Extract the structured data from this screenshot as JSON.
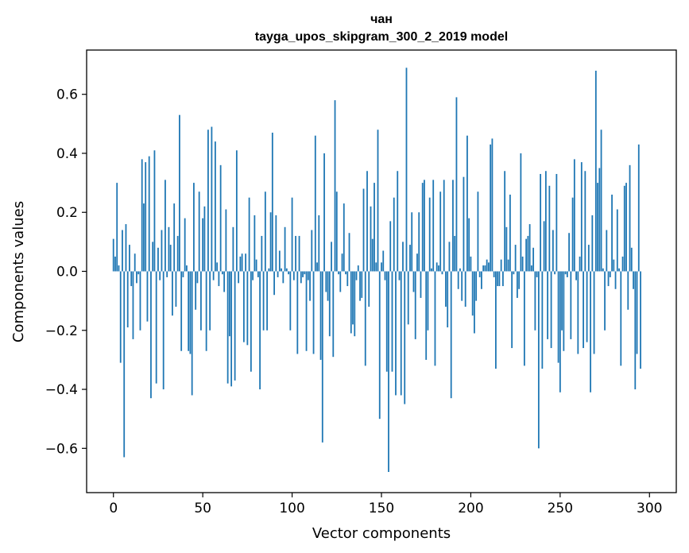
{
  "chart_data": {
    "type": "bar",
    "title": "чан",
    "subtitle": "tayga_upos_skipgram_300_2_2019 model",
    "xlabel": "Vector components",
    "ylabel": "Components values",
    "xlim": [
      -15,
      315
    ],
    "ylim": [
      -0.75,
      0.75
    ],
    "xticks": [
      0,
      50,
      100,
      150,
      200,
      250,
      300
    ],
    "yticks": [
      -0.6,
      -0.4,
      -0.2,
      0.0,
      0.2,
      0.4,
      0.6
    ],
    "ytick_labels": [
      "−0.6",
      "−0.4",
      "−0.2",
      "0.0",
      "0.2",
      "0.4",
      "0.6"
    ],
    "bar_color": "#1f77b4",
    "values": [
      0.11,
      0.05,
      0.3,
      0.02,
      -0.31,
      0.14,
      -0.63,
      0.16,
      -0.19,
      0.09,
      -0.05,
      -0.23,
      0.06,
      -0.04,
      -0.01,
      -0.2,
      0.38,
      0.23,
      0.37,
      -0.17,
      0.39,
      -0.43,
      0.1,
      0.41,
      -0.38,
      0.08,
      -0.03,
      0.14,
      -0.4,
      0.31,
      -0.02,
      0.15,
      0.09,
      -0.15,
      0.23,
      -0.12,
      0.12,
      0.53,
      -0.27,
      -0.02,
      0.18,
      0.02,
      -0.27,
      -0.28,
      -0.42,
      0.3,
      -0.13,
      -0.04,
      0.27,
      -0.2,
      0.18,
      0.22,
      -0.27,
      0.48,
      -0.2,
      0.49,
      -0.03,
      0.44,
      0.03,
      -0.05,
      0.36,
      -0.01,
      -0.07,
      0.21,
      -0.38,
      -0.22,
      -0.39,
      0.15,
      -0.37,
      0.41,
      -0.04,
      0.05,
      0.06,
      -0.24,
      0.06,
      -0.25,
      0.25,
      -0.34,
      -0.03,
      0.19,
      0.04,
      -0.02,
      -0.4,
      0.12,
      -0.2,
      0.27,
      -0.2,
      0.01,
      0.2,
      0.47,
      -0.08,
      0.19,
      -0.02,
      0.07,
      0.01,
      -0.04,
      0.15,
      0.01,
      -0.01,
      -0.2,
      0.25,
      -0.03,
      0.12,
      -0.28,
      0.12,
      -0.04,
      -0.02,
      -0.01,
      -0.27,
      -0.03,
      -0.1,
      0.14,
      -0.28,
      0.46,
      0.03,
      0.19,
      -0.3,
      -0.58,
      0.4,
      -0.07,
      -0.1,
      -0.22,
      0.1,
      -0.29,
      0.58,
      0.27,
      -0.01,
      -0.07,
      0.06,
      0.23,
      -0.01,
      -0.05,
      0.13,
      -0.21,
      -0.18,
      -0.22,
      -0.03,
      0.02,
      -0.1,
      -0.09,
      0.28,
      -0.32,
      0.34,
      -0.12,
      0.22,
      0.11,
      0.3,
      0.03,
      0.48,
      -0.5,
      0.03,
      0.07,
      -0.03,
      -0.34,
      -0.68,
      0.17,
      -0.34,
      0.25,
      -0.42,
      0.34,
      -0.03,
      -0.42,
      0.1,
      -0.45,
      0.69,
      -0.18,
      0.09,
      0.2,
      -0.07,
      -0.23,
      0.06,
      0.2,
      -0.09,
      0.3,
      0.31,
      -0.3,
      -0.2,
      0.25,
      0.01,
      0.31,
      -0.32,
      0.03,
      0.02,
      0.27,
      -0.01,
      0.31,
      -0.12,
      -0.19,
      0.1,
      -0.43,
      0.31,
      0.12,
      0.59,
      -0.06,
      0.01,
      -0.1,
      0.32,
      -0.12,
      0.46,
      0.18,
      0.05,
      -0.15,
      -0.21,
      -0.1,
      0.27,
      -0.02,
      -0.06,
      0.02,
      0.02,
      0.04,
      0.03,
      0.43,
      0.45,
      -0.02,
      -0.33,
      -0.05,
      -0.05,
      0.04,
      -0.05,
      0.34,
      0.15,
      0.04,
      0.26,
      -0.26,
      -0.01,
      0.09,
      -0.09,
      -0.06,
      0.4,
      0.05,
      -0.32,
      0.11,
      0.12,
      0.16,
      0.02,
      0.08,
      -0.2,
      -0.02,
      -0.6,
      0.33,
      -0.33,
      0.17,
      0.34,
      -0.23,
      0.29,
      -0.26,
      0.14,
      -0.01,
      0.33,
      -0.31,
      -0.41,
      -0.2,
      -0.27,
      -0.01,
      -0.02,
      0.13,
      -0.23,
      0.25,
      0.38,
      -0.03,
      -0.28,
      0.05,
      0.37,
      -0.26,
      0.34,
      -0.24,
      0.09,
      -0.41,
      0.19,
      -0.28,
      0.68,
      0.3,
      0.35,
      0.48,
      0.01,
      -0.2,
      0.14,
      -0.05,
      -0.02,
      0.26,
      0.04,
      -0.06,
      0.21,
      0.01,
      -0.32,
      0.05,
      0.29,
      0.3,
      -0.13,
      0.36,
      0.08,
      -0.06,
      -0.4,
      -0.28,
      0.43,
      -0.33
    ]
  }
}
